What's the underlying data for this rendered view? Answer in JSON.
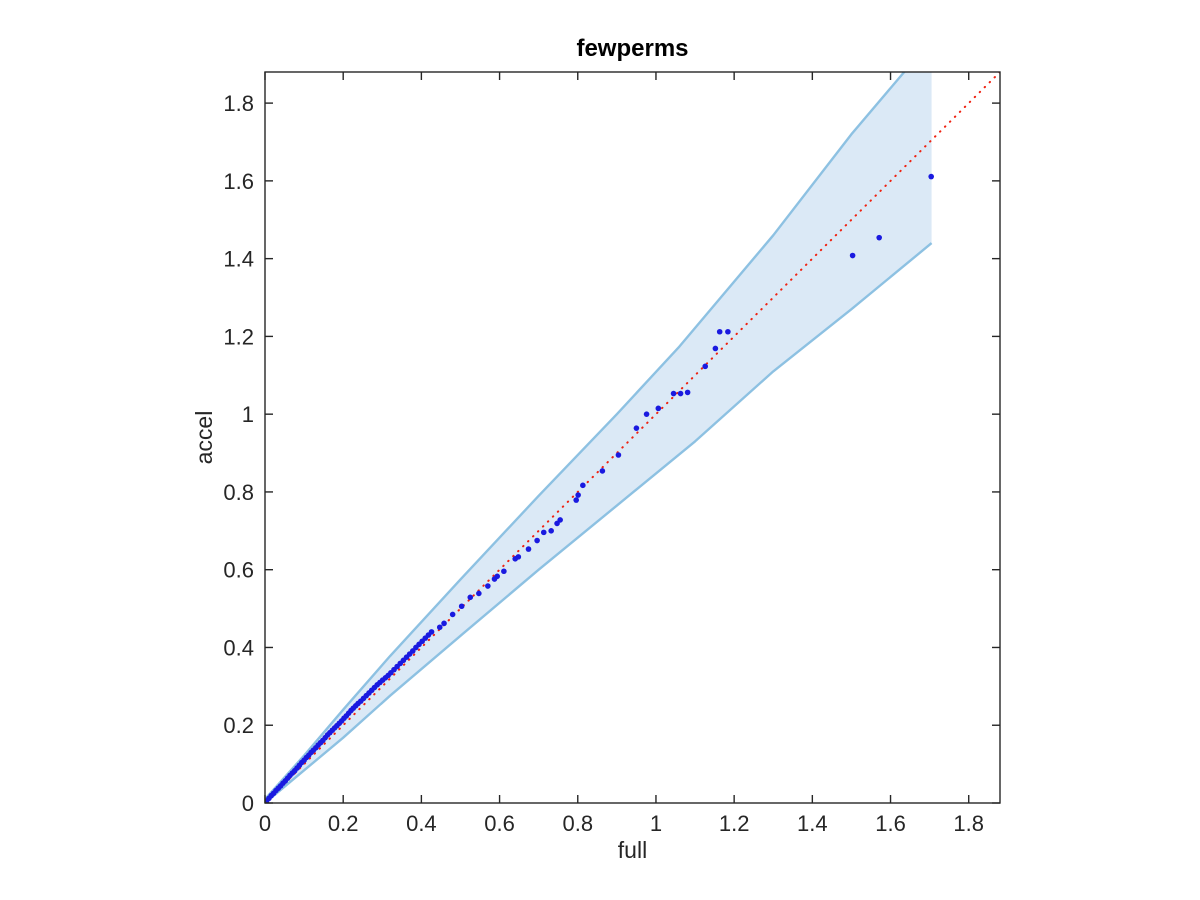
{
  "figure": {
    "background": "#ffffff",
    "axes_color": "#262626",
    "title_color": "#000000"
  },
  "chart_data": {
    "type": "scatter",
    "title": "fewperms",
    "xlabel": "full",
    "ylabel": "accel",
    "xlim": [
      0,
      1.88
    ],
    "ylim": [
      0,
      1.88
    ],
    "x_ticks": [
      0,
      0.2,
      0.4,
      0.6,
      0.8,
      1,
      1.2,
      1.4,
      1.6,
      1.8
    ],
    "x_tick_labels": [
      "0",
      "0.2",
      "0.4",
      "0.6",
      "0.8",
      "1",
      "1.2",
      "1.4",
      "1.6",
      "1.8"
    ],
    "y_ticks": [
      0,
      0.2,
      0.4,
      0.6,
      0.8,
      1,
      1.2,
      1.4,
      1.6,
      1.8
    ],
    "y_tick_labels": [
      "0",
      "0.2",
      "0.4",
      "0.6",
      "0.8",
      "1",
      "1.2",
      "1.4",
      "1.6",
      "1.8"
    ],
    "grid": false,
    "box": true,
    "tick_direction": "in",
    "legend": "none",
    "series": [
      {
        "name": "confidence-band",
        "type": "band",
        "fill_color": "#dbe9f6",
        "edge_color": "#8dc1e2",
        "edge_width": 2.4,
        "upper": [
          [
            0,
            0.01
          ],
          [
            0.1,
            0.122
          ],
          [
            0.2,
            0.24
          ],
          [
            0.32,
            0.378
          ],
          [
            0.5,
            0.575
          ],
          [
            0.7,
            0.79
          ],
          [
            0.9,
            1.0
          ],
          [
            1.06,
            1.174
          ],
          [
            1.3,
            1.46
          ],
          [
            1.5,
            1.72
          ],
          [
            1.635,
            1.88
          ],
          [
            1.705,
            1.97
          ]
        ],
        "lower": [
          [
            0,
            0
          ],
          [
            0.1,
            0.084
          ],
          [
            0.2,
            0.168
          ],
          [
            0.32,
            0.276
          ],
          [
            0.5,
            0.43
          ],
          [
            0.7,
            0.6
          ],
          [
            0.9,
            0.765
          ],
          [
            1.1,
            0.93
          ],
          [
            1.3,
            1.11
          ],
          [
            1.5,
            1.27
          ],
          [
            1.705,
            1.44
          ]
        ]
      },
      {
        "name": "identity-line",
        "type": "line",
        "style": "dotted",
        "color": "#ee2211",
        "width": 2,
        "points": [
          [
            0,
            0
          ],
          [
            1.88,
            1.88
          ]
        ]
      },
      {
        "name": "qq-points",
        "type": "scatter",
        "color": "#1a1ae0",
        "marker": "dot",
        "marker_radius": 2.8,
        "points": [
          [
            0.004,
            0.005
          ],
          [
            0.01,
            0.012
          ],
          [
            0.016,
            0.019
          ],
          [
            0.022,
            0.025
          ],
          [
            0.028,
            0.032
          ],
          [
            0.034,
            0.038
          ],
          [
            0.04,
            0.044
          ],
          [
            0.046,
            0.051
          ],
          [
            0.052,
            0.057
          ],
          [
            0.058,
            0.064
          ],
          [
            0.064,
            0.071
          ],
          [
            0.07,
            0.077
          ],
          [
            0.076,
            0.083
          ],
          [
            0.082,
            0.09
          ],
          [
            0.088,
            0.097
          ],
          [
            0.094,
            0.104
          ],
          [
            0.1,
            0.11
          ],
          [
            0.106,
            0.117
          ],
          [
            0.112,
            0.123
          ],
          [
            0.118,
            0.13
          ],
          [
            0.124,
            0.136
          ],
          [
            0.13,
            0.142
          ],
          [
            0.136,
            0.149
          ],
          [
            0.142,
            0.155
          ],
          [
            0.148,
            0.161
          ],
          [
            0.154,
            0.168
          ],
          [
            0.16,
            0.175
          ],
          [
            0.166,
            0.181
          ],
          [
            0.172,
            0.187
          ],
          [
            0.178,
            0.193
          ],
          [
            0.184,
            0.199
          ],
          [
            0.19,
            0.205
          ],
          [
            0.196,
            0.211
          ],
          [
            0.202,
            0.218
          ],
          [
            0.208,
            0.224
          ],
          [
            0.214,
            0.231
          ],
          [
            0.22,
            0.238
          ],
          [
            0.226,
            0.244
          ],
          [
            0.232,
            0.25
          ],
          [
            0.238,
            0.256
          ],
          [
            0.245,
            0.262
          ],
          [
            0.252,
            0.269
          ],
          [
            0.259,
            0.276
          ],
          [
            0.266,
            0.283
          ],
          [
            0.273,
            0.29
          ],
          [
            0.28,
            0.297
          ],
          [
            0.287,
            0.304
          ],
          [
            0.294,
            0.31
          ],
          [
            0.301,
            0.316
          ],
          [
            0.308,
            0.322
          ],
          [
            0.315,
            0.328
          ],
          [
            0.322,
            0.335
          ],
          [
            0.33,
            0.343
          ],
          [
            0.338,
            0.351
          ],
          [
            0.346,
            0.359
          ],
          [
            0.354,
            0.367
          ],
          [
            0.362,
            0.375
          ],
          [
            0.37,
            0.383
          ],
          [
            0.378,
            0.391
          ],
          [
            0.386,
            0.4
          ],
          [
            0.394,
            0.408
          ],
          [
            0.402,
            0.416
          ],
          [
            0.41,
            0.424
          ],
          [
            0.418,
            0.432
          ],
          [
            0.426,
            0.44
          ],
          [
            0.447,
            0.452
          ],
          [
            0.458,
            0.462
          ],
          [
            0.48,
            0.485
          ],
          [
            0.503,
            0.506
          ],
          [
            0.525,
            0.529
          ],
          [
            0.547,
            0.539
          ],
          [
            0.57,
            0.558
          ],
          [
            0.587,
            0.576
          ],
          [
            0.594,
            0.583
          ],
          [
            0.611,
            0.596
          ],
          [
            0.64,
            0.628
          ],
          [
            0.648,
            0.633
          ],
          [
            0.674,
            0.653
          ],
          [
            0.696,
            0.675
          ],
          [
            0.713,
            0.696
          ],
          [
            0.732,
            0.7
          ],
          [
            0.747,
            0.719
          ],
          [
            0.755,
            0.728
          ],
          [
            0.796,
            0.779
          ],
          [
            0.801,
            0.792
          ],
          [
            0.813,
            0.817
          ],
          [
            0.863,
            0.854
          ],
          [
            0.904,
            0.895
          ],
          [
            0.95,
            0.964
          ],
          [
            0.976,
            1.0
          ],
          [
            1.006,
            1.015
          ],
          [
            1.045,
            1.053
          ],
          [
            1.063,
            1.053
          ],
          [
            1.081,
            1.056
          ],
          [
            1.126,
            1.123
          ],
          [
            1.152,
            1.169
          ],
          [
            1.163,
            1.212
          ],
          [
            1.184,
            1.212
          ],
          [
            1.503,
            1.408
          ],
          [
            1.571,
            1.454
          ],
          [
            1.704,
            1.611
          ]
        ]
      }
    ]
  }
}
